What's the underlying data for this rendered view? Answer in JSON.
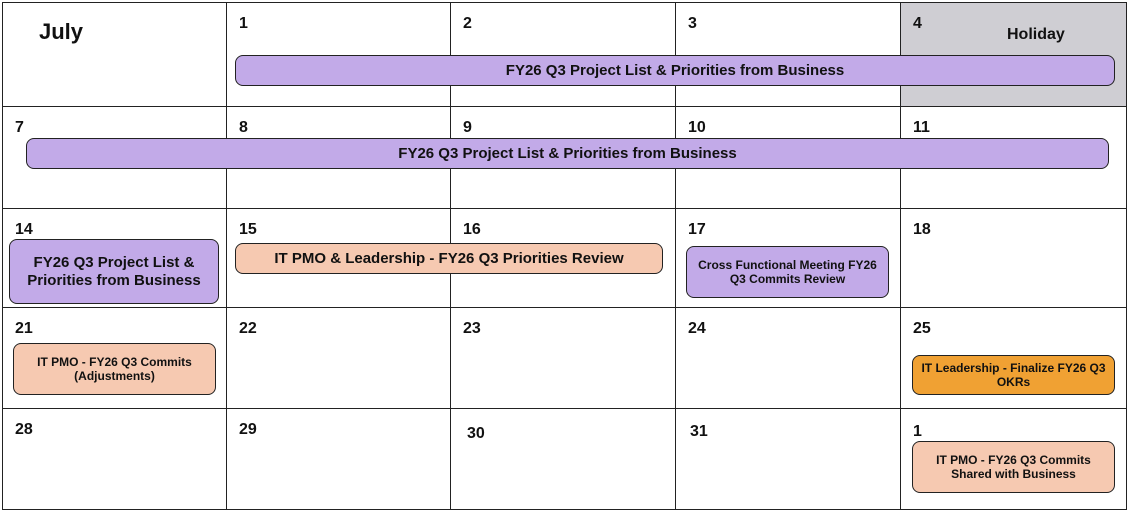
{
  "calendar": {
    "month": "July",
    "holiday_label": "Holiday",
    "weeks": [
      {
        "days": [
          "",
          "1",
          "2",
          "3",
          "4"
        ]
      },
      {
        "days": [
          "7",
          "8",
          "9",
          "10",
          "11"
        ]
      },
      {
        "days": [
          "14",
          "15",
          "16",
          "17",
          "18"
        ]
      },
      {
        "days": [
          "21",
          "22",
          "23",
          "24",
          "25"
        ]
      },
      {
        "days": [
          "28",
          "29",
          "30",
          "31",
          "1"
        ]
      }
    ]
  },
  "events": [
    {
      "label": "FY26 Q3 Project List & Priorities from Business",
      "color": "#c2aae8"
    },
    {
      "label": "FY26 Q3 Project List & Priorities from Business",
      "color": "#c2aae8"
    },
    {
      "label": "FY26 Q3 Project List & Priorities from Business",
      "color": "#c2aae8"
    },
    {
      "label": "IT PMO & Leadership - FY26 Q3 Priorities Review",
      "color": "#f6c9b1"
    },
    {
      "label": "Cross Functional Meeting FY26 Q3 Commits Review",
      "color": "#c2aae8"
    },
    {
      "label": "IT PMO - FY26 Q3 Commits (Adjustments)",
      "color": "#f6c9b1"
    },
    {
      "label": "IT Leadership - Finalize FY26 Q3 OKRs",
      "color": "#f0a133"
    },
    {
      "label": "IT PMO - FY26 Q3 Commits Shared with Business",
      "color": "#f6c9b1"
    }
  ]
}
